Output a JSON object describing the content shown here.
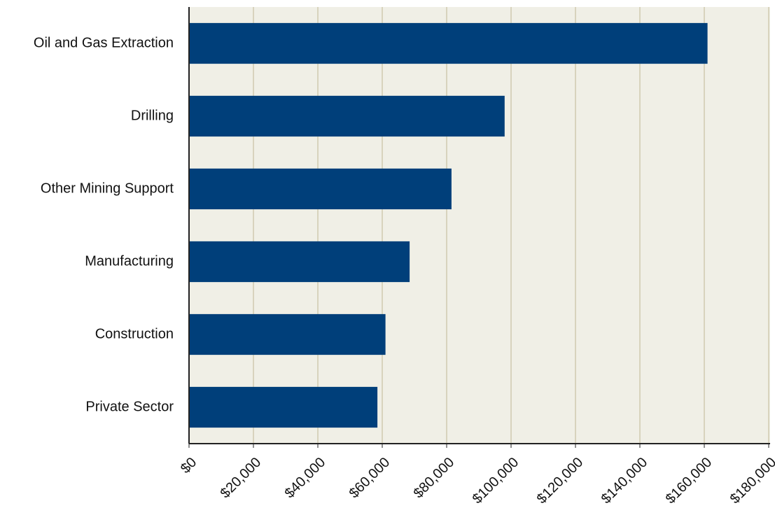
{
  "chart_data": {
    "type": "barh",
    "categories": [
      "Oil and Gas Extraction",
      "Drilling",
      "Other Mining Support",
      "Manufacturing",
      "Construction",
      "Private Sector"
    ],
    "values": [
      161000,
      98000,
      81500,
      68500,
      61000,
      58500
    ],
    "color": "#003f7a",
    "xlim": [
      0,
      180000
    ],
    "xticks": [
      {
        "value": 0,
        "label": "$0"
      },
      {
        "value": 20000,
        "label": "$20,000"
      },
      {
        "value": 40000,
        "label": "$40,000"
      },
      {
        "value": 60000,
        "label": "$60,000"
      },
      {
        "value": 80000,
        "label": "$80,000"
      },
      {
        "value": 100000,
        "label": "$100,000"
      },
      {
        "value": 120000,
        "label": "$120,000"
      },
      {
        "value": 140000,
        "label": "$140,000"
      },
      {
        "value": 160000,
        "label": "$160,000"
      },
      {
        "value": 180000,
        "label": "$180,000"
      }
    ],
    "grid": true
  }
}
